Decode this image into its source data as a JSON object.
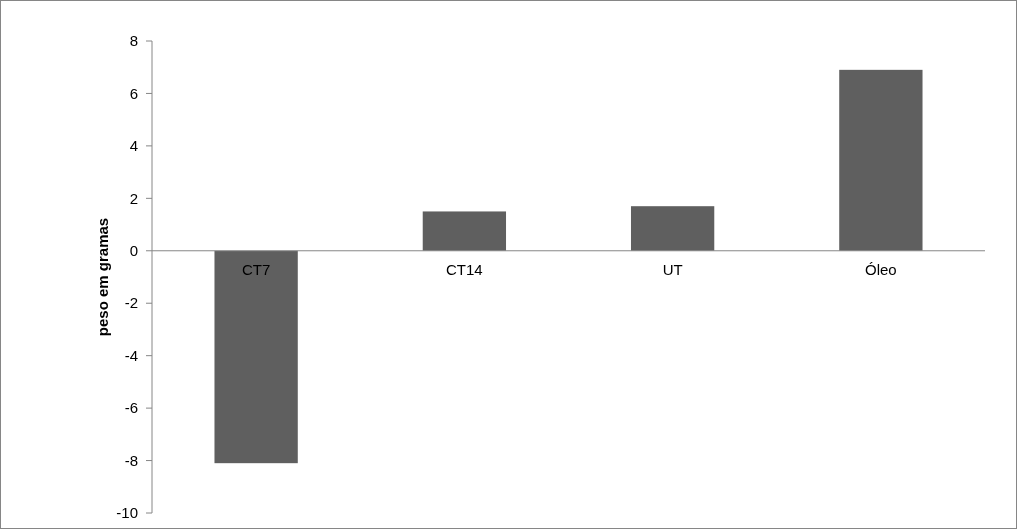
{
  "chart_data": {
    "type": "bar",
    "ylabel": "peso em gramas",
    "categories": [
      "CT7",
      "CT14",
      "UT",
      "Óleo"
    ],
    "values": [
      -8.1,
      1.5,
      1.7,
      6.9
    ],
    "color": "#5f5f5f",
    "ylim": [
      -10,
      8
    ],
    "yticks": [
      -10,
      -8,
      -6,
      -4,
      -2,
      0,
      2,
      4,
      6,
      8
    ],
    "grid": false
  }
}
